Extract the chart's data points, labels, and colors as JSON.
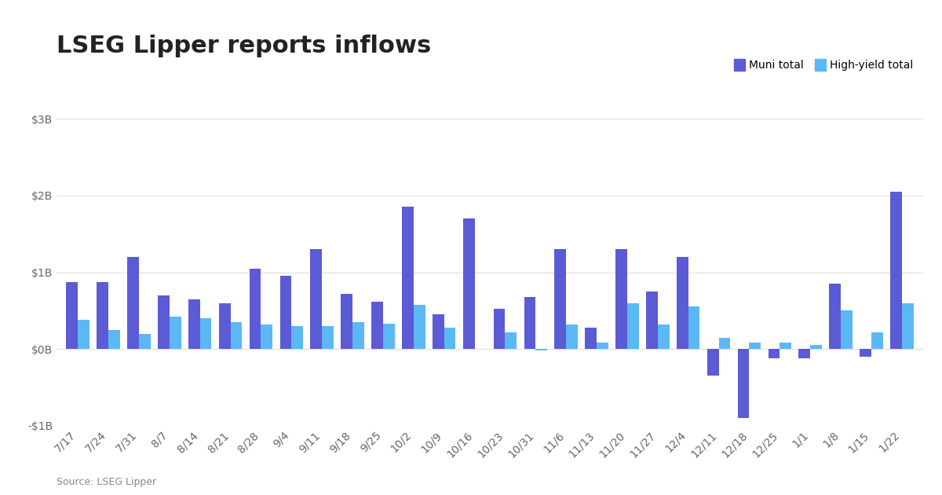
{
  "title": "LSEG Lipper reports inflows",
  "source": "Source: LSEG Lipper",
  "labels": [
    "7/17",
    "7/24",
    "7/31",
    "8/7",
    "8/14",
    "8/21",
    "8/28",
    "9/4",
    "9/11",
    "9/18",
    "9/25",
    "10/2",
    "10/9",
    "10/16",
    "10/23",
    "10/31",
    "11/6",
    "11/13",
    "11/20",
    "11/27",
    "12/4",
    "12/11",
    "12/18",
    "12/25",
    "1/1",
    "1/8",
    "1/15",
    "1/22"
  ],
  "muni": [
    0.87,
    0.87,
    1.2,
    0.7,
    0.65,
    0.6,
    1.05,
    0.95,
    1.3,
    0.72,
    0.62,
    1.85,
    0.45,
    1.7,
    0.52,
    0.68,
    1.3,
    0.28,
    1.3,
    0.75,
    1.2,
    -0.35,
    -0.9,
    -0.12,
    -0.12,
    0.85,
    -0.1,
    2.05
  ],
  "hy": [
    0.38,
    0.25,
    0.2,
    0.42,
    0.4,
    0.35,
    0.32,
    0.3,
    0.3,
    0.35,
    0.33,
    0.58,
    0.28,
    0.0,
    0.22,
    -0.02,
    0.32,
    0.08,
    0.6,
    0.32,
    0.55,
    0.15,
    0.08,
    0.08,
    0.05,
    0.5,
    0.22,
    0.6
  ],
  "muni_color": "#5B5BD6",
  "hy_color": "#5BB8F5",
  "ylim": [
    -1.0,
    3.0
  ],
  "yticks": [
    -1.0,
    0.0,
    1.0,
    2.0,
    3.0
  ],
  "ytick_labels": [
    "-$1B",
    "$0B",
    "$1B",
    "$2B",
    "$3B"
  ],
  "bg_color": "#ffffff",
  "grid_color": "#dddddd",
  "title_fontsize": 22,
  "tick_fontsize": 10,
  "bar_width": 0.38
}
